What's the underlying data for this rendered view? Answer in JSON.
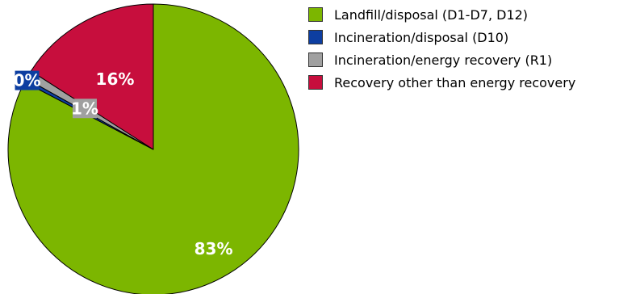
{
  "chart_data": {
    "type": "pie",
    "title": "",
    "slices": [
      {
        "label": "Landfill/disposal (D1-D7, D12)",
        "value": 83,
        "display": "83%",
        "color": "#7cb600"
      },
      {
        "label": "Incineration/disposal (D10)",
        "value": 0.4,
        "display": "0%",
        "color": "#0d3ea1"
      },
      {
        "label": "Incineration/energy recovery (R1)",
        "value": 1,
        "display": "1%",
        "color": "#a0a0a0"
      },
      {
        "label": "Recovery other than energy recovery",
        "value": 16,
        "display": "16%",
        "color": "#c70e3d"
      }
    ],
    "start": "12 o'clock",
    "direction": "clockwise",
    "legend_position": "top-right",
    "label_color": "#ffffff"
  }
}
